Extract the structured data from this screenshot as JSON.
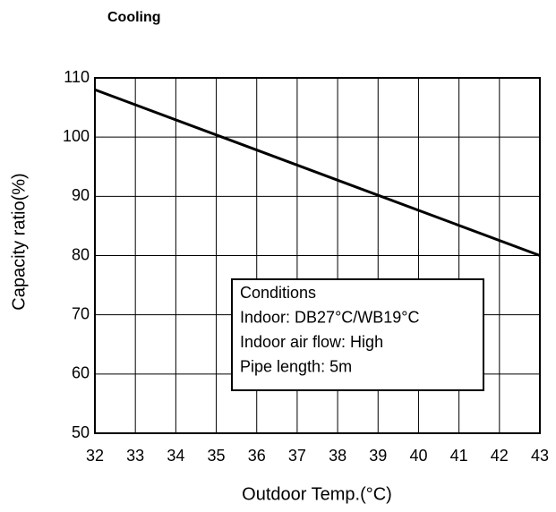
{
  "chart_data": {
    "type": "line",
    "title": "Cooling",
    "x_label": "Outdoor Temp.(°C)",
    "y_label": "Capacity ratio(%)",
    "x": [
      32,
      43
    ],
    "series": [
      {
        "name": "Cooling",
        "color": "#000000",
        "values": [
          108,
          80
        ]
      }
    ],
    "xlim": [
      32,
      43
    ],
    "xticks": [
      32,
      33,
      34,
      35,
      36,
      37,
      38,
      39,
      40,
      41,
      42,
      43
    ],
    "ylim": [
      50,
      110
    ],
    "yticks": [
      50,
      60,
      70,
      80,
      90,
      100,
      110
    ],
    "grid": true,
    "annotation": [
      "Conditions",
      "Indoor: DB27°C/WB19°C",
      "Indoor air flow: High",
      "Pipe length: 5m"
    ]
  }
}
